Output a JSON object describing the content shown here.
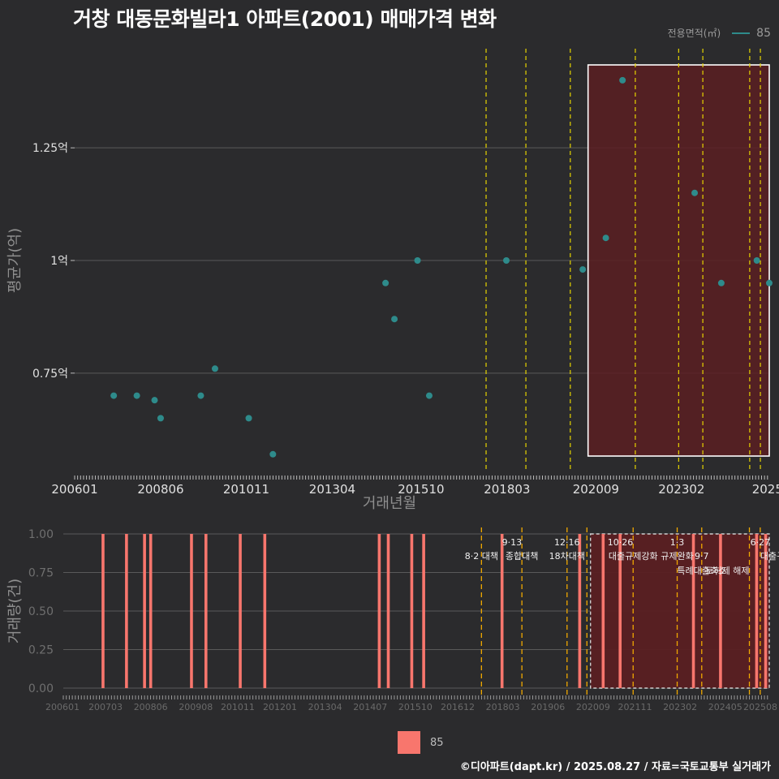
{
  "title": "거창 대동문화빌라1 아파트(2001) 매매가격 변화",
  "footer": "©디아파트(dapt.kr) / 2025.08.27 / 자료=국토교통부 실거래가",
  "colors": {
    "background": "#2b2b2d",
    "series": "#2e8b8b",
    "bar": "#f8766d",
    "policy_line": "#e6d400",
    "policy_line_bottom": "#f0a800",
    "highlight_fill": "#5a1f22",
    "grid": "#5a5a5a"
  },
  "chart_data": [
    {
      "type": "scatter",
      "name": "price",
      "legend": {
        "title": "전용면적(㎡)",
        "entries": [
          "85"
        ]
      },
      "xlabel": "거래년월",
      "ylabel": "평균가(억)",
      "xlim": [
        2006.0,
        2025.55
      ],
      "ylim": [
        0.53,
        1.47
      ],
      "yticks": [
        {
          "v": 0.75,
          "label": "0.75억"
        },
        {
          "v": 1.0,
          "label": "1억"
        },
        {
          "v": 1.25,
          "label": "1.25억"
        }
      ],
      "xticks": [
        {
          "v": 2006.0,
          "label": "200601"
        },
        {
          "v": 2008.42,
          "label": "200806"
        },
        {
          "v": 2010.83,
          "label": "201011"
        },
        {
          "v": 2013.25,
          "label": "201304"
        },
        {
          "v": 2015.75,
          "label": "201510"
        },
        {
          "v": 2018.17,
          "label": "201803"
        },
        {
          "v": 2020.67,
          "label": "202009"
        },
        {
          "v": 2023.08,
          "label": "202302"
        },
        {
          "v": 2025.5,
          "label": "2025"
        }
      ],
      "points": [
        {
          "x": 2007.1,
          "y": 0.7
        },
        {
          "x": 2007.75,
          "y": 0.7
        },
        {
          "x": 2008.25,
          "y": 0.69
        },
        {
          "x": 2008.42,
          "y": 0.65
        },
        {
          "x": 2009.55,
          "y": 0.7
        },
        {
          "x": 2009.95,
          "y": 0.76
        },
        {
          "x": 2010.9,
          "y": 0.65
        },
        {
          "x": 2011.58,
          "y": 0.57
        },
        {
          "x": 2014.75,
          "y": 0.95
        },
        {
          "x": 2015.0,
          "y": 0.87
        },
        {
          "x": 2015.65,
          "y": 1.0
        },
        {
          "x": 2015.98,
          "y": 0.7
        },
        {
          "x": 2018.15,
          "y": 1.0
        },
        {
          "x": 2020.3,
          "y": 0.98
        },
        {
          "x": 2020.95,
          "y": 1.05
        },
        {
          "x": 2021.42,
          "y": 1.4
        },
        {
          "x": 2023.45,
          "y": 1.15
        },
        {
          "x": 2024.2,
          "y": 0.95
        },
        {
          "x": 2025.2,
          "y": 1.0
        },
        {
          "x": 2025.55,
          "y": 0.95
        }
      ],
      "policy_lines": [
        2017.58,
        2018.7,
        2019.95,
        2021.78,
        2023.0,
        2023.68,
        2025.0,
        2025.3
      ],
      "highlight_range": [
        2020.45,
        2025.55
      ]
    },
    {
      "type": "bar",
      "name": "volume",
      "ylabel": "거래량(건)",
      "xlim": [
        2006.0,
        2025.55
      ],
      "ylim": [
        0,
        1.0
      ],
      "yticks": [
        {
          "v": 0.0,
          "label": "0.00"
        },
        {
          "v": 0.25,
          "label": "0.25"
        },
        {
          "v": 0.5,
          "label": "0.50"
        },
        {
          "v": 0.75,
          "label": "0.75"
        },
        {
          "v": 1.0,
          "label": "1.00"
        }
      ],
      "xticks": [
        {
          "v": 2006.0,
          "label": "200601"
        },
        {
          "v": 2007.17,
          "label": "200703"
        },
        {
          "v": 2008.42,
          "label": "200806"
        },
        {
          "v": 2009.67,
          "label": "200908"
        },
        {
          "v": 2010.83,
          "label": "201011"
        },
        {
          "v": 2012.0,
          "label": "201201"
        },
        {
          "v": 2013.25,
          "label": "201304"
        },
        {
          "v": 2014.5,
          "label": "201407"
        },
        {
          "v": 2015.75,
          "label": "201510"
        },
        {
          "v": 2016.92,
          "label": "201612"
        },
        {
          "v": 2018.17,
          "label": "201803"
        },
        {
          "v": 2019.42,
          "label": "201906"
        },
        {
          "v": 2020.67,
          "label": "202009"
        },
        {
          "v": 2021.83,
          "label": "202111"
        },
        {
          "v": 2023.08,
          "label": "202302"
        },
        {
          "v": 2024.33,
          "label": "202405"
        },
        {
          "v": 2025.5,
          "label": "202508"
        }
      ],
      "bars": [
        {
          "x": 2007.1,
          "y": 1
        },
        {
          "x": 2007.75,
          "y": 1
        },
        {
          "x": 2008.25,
          "y": 1
        },
        {
          "x": 2008.42,
          "y": 1
        },
        {
          "x": 2009.55,
          "y": 1
        },
        {
          "x": 2009.95,
          "y": 1
        },
        {
          "x": 2010.9,
          "y": 1
        },
        {
          "x": 2011.58,
          "y": 1
        },
        {
          "x": 2014.75,
          "y": 1
        },
        {
          "x": 2015.0,
          "y": 1
        },
        {
          "x": 2015.65,
          "y": 1
        },
        {
          "x": 2015.98,
          "y": 1
        },
        {
          "x": 2018.15,
          "y": 1
        },
        {
          "x": 2020.3,
          "y": 1
        },
        {
          "x": 2020.95,
          "y": 1
        },
        {
          "x": 2021.42,
          "y": 1
        },
        {
          "x": 2023.45,
          "y": 1
        },
        {
          "x": 2024.2,
          "y": 1
        },
        {
          "x": 2025.2,
          "y": 1
        },
        {
          "x": 2025.45,
          "y": 1
        }
      ],
      "policy_lines": [
        2017.58,
        2018.7,
        2019.95,
        2020.5,
        2021.78,
        2023.0,
        2023.68,
        2025.0,
        2025.3
      ],
      "highlight_range": [
        2020.6,
        2025.55
      ],
      "annotations": [
        {
          "x": 2017.58,
          "text": "8·2 대책",
          "row": 1,
          "anchor": "middle"
        },
        {
          "x": 2018.7,
          "text": "9·13",
          "row": 0,
          "anchor": "end"
        },
        {
          "x": 2018.7,
          "text": "종합대책",
          "row": 1,
          "anchor": "middle"
        },
        {
          "x": 2019.95,
          "text": "12·16",
          "row": 0,
          "anchor": "middle"
        },
        {
          "x": 2019.95,
          "text": "18차대책",
          "row": 1,
          "anchor": "middle"
        },
        {
          "x": 2021.78,
          "text": "10·26",
          "row": 0,
          "anchor": "end"
        },
        {
          "x": 2021.78,
          "text": "대출규제강화",
          "row": 1,
          "anchor": "middle"
        },
        {
          "x": 2023.0,
          "text": "1·3",
          "row": 0,
          "anchor": "middle"
        },
        {
          "x": 2023.0,
          "text": "규제완화",
          "row": 1,
          "anchor": "middle"
        },
        {
          "x": 2023.68,
          "text": "9·7",
          "row": 1,
          "anchor": "middle"
        },
        {
          "x": 2023.68,
          "text": "특례대출축소",
          "row": 2,
          "anchor": "middle"
        },
        {
          "x": 2025.0,
          "text": "토허제 해제",
          "row": 2,
          "anchor": "end"
        },
        {
          "x": 2025.3,
          "text": "6·27",
          "row": 0,
          "anchor": "middle"
        },
        {
          "x": 2025.3,
          "text": "대출규",
          "row": 1,
          "anchor": "start"
        }
      ],
      "legend": {
        "entries": [
          "85"
        ]
      }
    }
  ]
}
